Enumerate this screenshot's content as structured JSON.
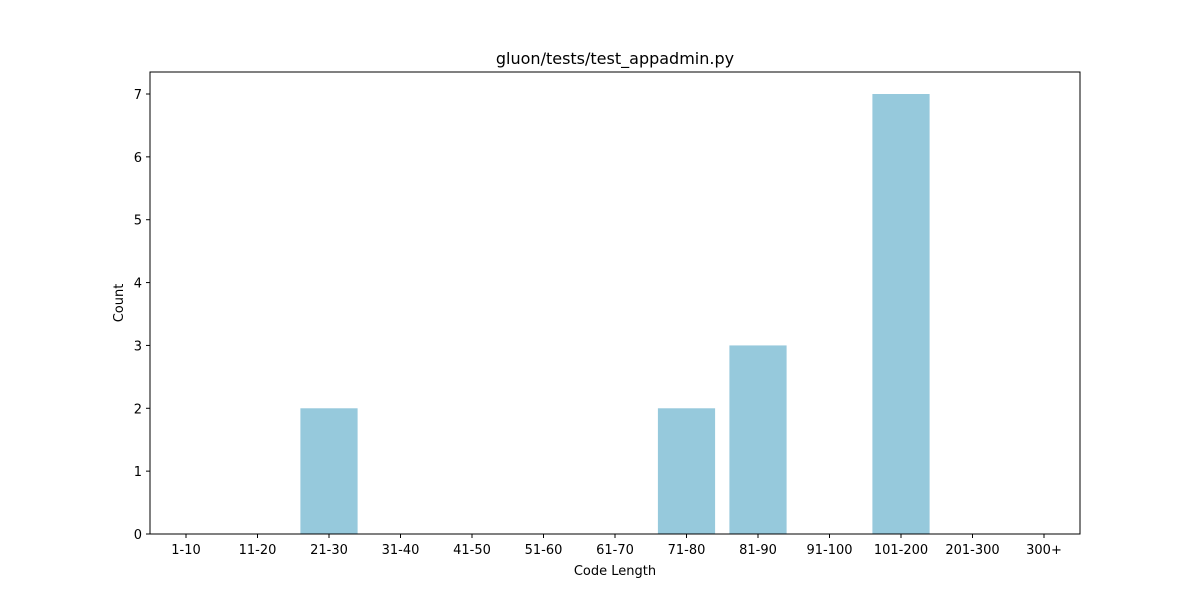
{
  "chart_data": {
    "type": "bar",
    "title": "gluon/tests/test_appadmin.py",
    "xlabel": "Code Length",
    "ylabel": "Count",
    "categories": [
      "1-10",
      "11-20",
      "21-30",
      "31-40",
      "41-50",
      "51-60",
      "61-70",
      "71-80",
      "81-90",
      "91-100",
      "101-200",
      "201-300",
      "300+"
    ],
    "values": [
      0,
      0,
      2,
      0,
      0,
      0,
      0,
      2,
      3,
      0,
      7,
      0,
      0
    ],
    "ylim": [
      0,
      7.35
    ],
    "yticks": [
      0,
      1,
      2,
      3,
      4,
      5,
      6,
      7
    ],
    "grid": false,
    "bar_color": "#96c9dc"
  }
}
